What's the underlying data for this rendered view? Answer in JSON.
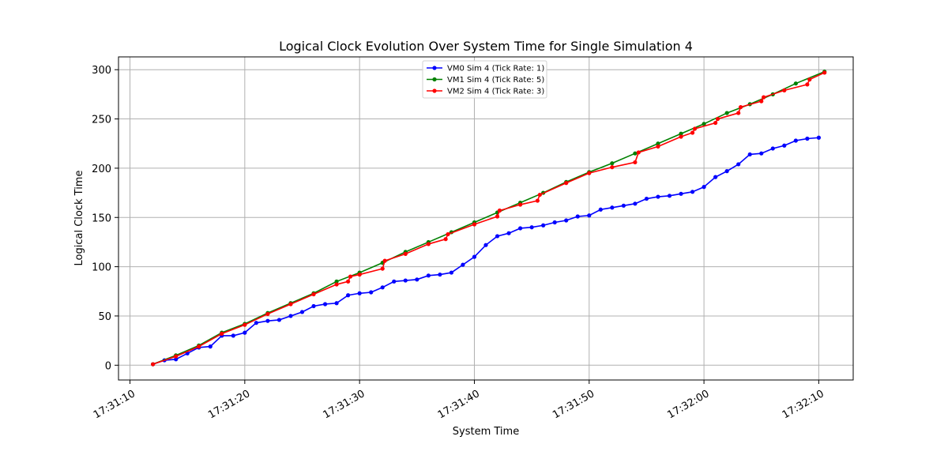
{
  "chart_data": {
    "type": "line",
    "title": "Logical Clock Evolution Over System Time for Single Simulation 4",
    "xlabel": "System Time",
    "ylabel": "Logical Clock Time",
    "xlim": [
      "17:31:09",
      "17:32:13"
    ],
    "ylim": [
      -15,
      313
    ],
    "x_ticks": [
      "17:31:10",
      "17:31:20",
      "17:31:30",
      "17:31:40",
      "17:31:50",
      "17:32:00",
      "17:32:10"
    ],
    "y_ticks": [
      0,
      50,
      100,
      150,
      200,
      250,
      300
    ],
    "grid": true,
    "legend_position": "top-center",
    "series": [
      {
        "name": "VM0 Sim 4 (Tick Rate: 1)",
        "color": "#0000ff",
        "points": [
          [
            "17:31:12",
            1
          ],
          [
            "17:31:13",
            5
          ],
          [
            "17:31:14",
            6
          ],
          [
            "17:31:15",
            12
          ],
          [
            "17:31:16",
            18
          ],
          [
            "17:31:17",
            19
          ],
          [
            "17:31:18",
            30
          ],
          [
            "17:31:19",
            30
          ],
          [
            "17:31:20",
            33
          ],
          [
            "17:31:21",
            43
          ],
          [
            "17:31:22",
            45
          ],
          [
            "17:31:23",
            46
          ],
          [
            "17:31:24",
            50
          ],
          [
            "17:31:25",
            54
          ],
          [
            "17:31:26",
            60
          ],
          [
            "17:31:27",
            62
          ],
          [
            "17:31:28",
            63
          ],
          [
            "17:31:29",
            71
          ],
          [
            "17:31:30",
            73
          ],
          [
            "17:31:31",
            74
          ],
          [
            "17:31:32",
            79
          ],
          [
            "17:31:33",
            85
          ],
          [
            "17:31:34",
            86
          ],
          [
            "17:31:35",
            87
          ],
          [
            "17:31:36",
            91
          ],
          [
            "17:31:37",
            92
          ],
          [
            "17:31:38",
            94
          ],
          [
            "17:31:39",
            102
          ],
          [
            "17:31:40",
            110
          ],
          [
            "17:31:41",
            122
          ],
          [
            "17:31:42",
            131
          ],
          [
            "17:31:43",
            134
          ],
          [
            "17:31:44",
            139
          ],
          [
            "17:31:45",
            140
          ],
          [
            "17:31:46",
            142
          ],
          [
            "17:31:47",
            145
          ],
          [
            "17:31:48",
            147
          ],
          [
            "17:31:49",
            151
          ],
          [
            "17:31:50",
            152
          ],
          [
            "17:31:51",
            158
          ],
          [
            "17:31:52",
            160
          ],
          [
            "17:31:53",
            162
          ],
          [
            "17:31:54",
            164
          ],
          [
            "17:31:55",
            169
          ],
          [
            "17:31:56",
            171
          ],
          [
            "17:31:57",
            172
          ],
          [
            "17:31:58",
            174
          ],
          [
            "17:31:59",
            176
          ],
          [
            "17:32:00",
            181
          ],
          [
            "17:32:01",
            191
          ],
          [
            "17:32:02",
            197
          ],
          [
            "17:32:03",
            204
          ],
          [
            "17:32:04",
            214
          ],
          [
            "17:32:05",
            215
          ],
          [
            "17:32:06",
            220
          ],
          [
            "17:32:07",
            223
          ],
          [
            "17:32:08",
            228
          ],
          [
            "17:32:09",
            230
          ],
          [
            "17:32:10",
            231
          ]
        ]
      },
      {
        "name": "VM1 Sim 4 (Tick Rate: 5)",
        "color": "#008000",
        "points": [
          [
            "17:31:12",
            1
          ],
          [
            "17:31:14",
            10
          ],
          [
            "17:31:16",
            20
          ],
          [
            "17:31:18",
            33
          ],
          [
            "17:31:20",
            42
          ],
          [
            "17:31:22",
            53
          ],
          [
            "17:31:24",
            63
          ],
          [
            "17:31:26",
            73
          ],
          [
            "17:31:28",
            85
          ],
          [
            "17:31:30",
            94
          ],
          [
            "17:31:32",
            104
          ],
          [
            "17:31:34",
            115
          ],
          [
            "17:31:36",
            125
          ],
          [
            "17:31:38",
            135
          ],
          [
            "17:31:40",
            145
          ],
          [
            "17:31:42",
            155
          ],
          [
            "17:31:44",
            165
          ],
          [
            "17:31:46",
            175
          ],
          [
            "17:31:48",
            186
          ],
          [
            "17:31:50",
            196
          ],
          [
            "17:31:52",
            205
          ],
          [
            "17:31:54",
            215
          ],
          [
            "17:31:56",
            225
          ],
          [
            "17:31:58",
            235
          ],
          [
            "17:32:00",
            245
          ],
          [
            "17:32:02",
            256
          ],
          [
            "17:32:04",
            265
          ],
          [
            "17:32:06",
            275
          ],
          [
            "17:32:08",
            286
          ],
          [
            "17:32:10.5",
            298
          ]
        ]
      },
      {
        "name": "VM2 Sim 4 (Tick Rate: 3)",
        "color": "#ff0000",
        "points": [
          [
            "17:31:12",
            1
          ],
          [
            "17:31:14",
            9
          ],
          [
            "17:31:16",
            19
          ],
          [
            "17:31:18",
            32
          ],
          [
            "17:31:20",
            41
          ],
          [
            "17:31:22",
            52
          ],
          [
            "17:31:24",
            62
          ],
          [
            "17:31:26",
            72
          ],
          [
            "17:31:28",
            82
          ],
          [
            "17:31:29",
            85
          ],
          [
            "17:31:29.2",
            90
          ],
          [
            "17:31:30",
            92
          ],
          [
            "17:31:32",
            98
          ],
          [
            "17:31:32.2",
            106
          ],
          [
            "17:31:34",
            113
          ],
          [
            "17:31:36",
            123
          ],
          [
            "17:31:37.5",
            128
          ],
          [
            "17:31:37.7",
            133
          ],
          [
            "17:31:40",
            143
          ],
          [
            "17:31:42",
            151
          ],
          [
            "17:31:42.2",
            157
          ],
          [
            "17:31:44",
            163
          ],
          [
            "17:31:45.5",
            167
          ],
          [
            "17:31:45.7",
            173
          ],
          [
            "17:31:48",
            185
          ],
          [
            "17:31:50",
            195
          ],
          [
            "17:31:52",
            201
          ],
          [
            "17:31:54",
            206
          ],
          [
            "17:31:54.3",
            216
          ],
          [
            "17:31:56",
            222
          ],
          [
            "17:31:58",
            232
          ],
          [
            "17:31:59",
            236
          ],
          [
            "17:31:59.2",
            240
          ],
          [
            "17:32:01",
            246
          ],
          [
            "17:32:01.2",
            250
          ],
          [
            "17:32:03",
            256
          ],
          [
            "17:32:03.2",
            262
          ],
          [
            "17:32:05",
            268
          ],
          [
            "17:32:05.2",
            272
          ],
          [
            "17:32:07",
            279
          ],
          [
            "17:32:09",
            285
          ],
          [
            "17:32:09.2",
            290
          ],
          [
            "17:32:10.5",
            297
          ]
        ]
      }
    ]
  }
}
